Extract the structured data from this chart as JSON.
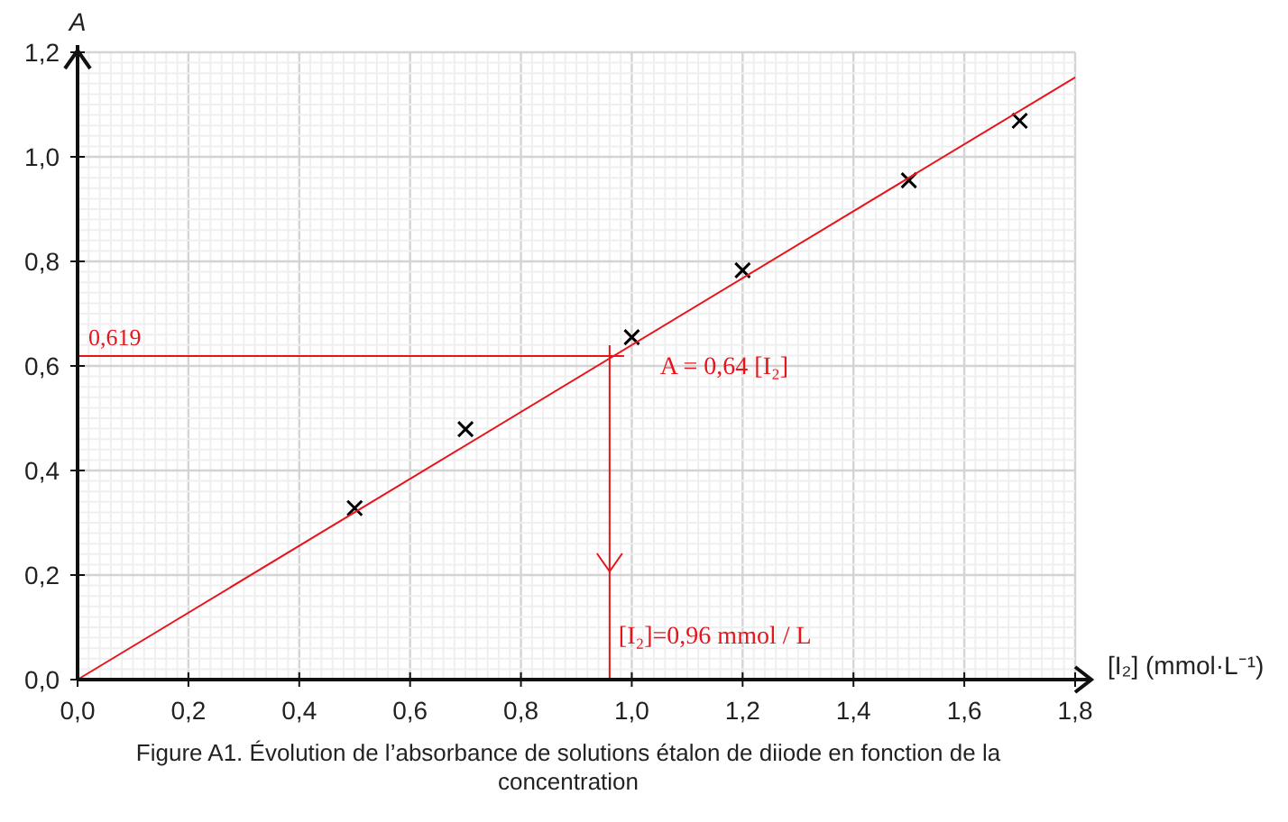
{
  "chart_data": {
    "type": "scatter",
    "xlabel": "[I₂] (mmol·L⁻¹)",
    "ylabel": "A",
    "xlim": [
      0,
      1.8
    ],
    "ylim": [
      0,
      1.2
    ],
    "xticks": [
      {
        "value": 0,
        "label": "0,0"
      },
      {
        "value": 0.2,
        "label": "0,2"
      },
      {
        "value": 0.4,
        "label": "0,4"
      },
      {
        "value": 0.6,
        "label": "0,6"
      },
      {
        "value": 0.8,
        "label": "0,8"
      },
      {
        "value": 1,
        "label": "1,0"
      },
      {
        "value": 1.2,
        "label": "1,2"
      },
      {
        "value": 1.4,
        "label": "1,4"
      },
      {
        "value": 1.6,
        "label": "1,6"
      },
      {
        "value": 1.8,
        "label": "1,8"
      }
    ],
    "yticks": [
      {
        "value": 0,
        "label": "0,0"
      },
      {
        "value": 0.2,
        "label": "0,2"
      },
      {
        "value": 0.4,
        "label": "0,4"
      },
      {
        "value": 0.6,
        "label": "0,6"
      },
      {
        "value": 0.8,
        "label": "0,8"
      },
      {
        "value": 1,
        "label": "1,0"
      },
      {
        "value": 1.2,
        "label": "1,2"
      }
    ],
    "grid": true,
    "series": [
      {
        "marker": "cross",
        "color": "#000000",
        "x": [
          0.5,
          0.7,
          1.0,
          1.2,
          1.5,
          1.7
        ],
        "values": [
          0.328,
          0.479,
          0.655,
          0.783,
          0.955,
          1.069
        ]
      },
      {
        "type": "line",
        "color": "#e8141c",
        "x": [
          0,
          1.8
        ],
        "values": [
          0,
          1.152
        ],
        "line_style": "solid",
        "marker": "none"
      }
    ],
    "ref_lines": [
      {
        "axis": "y",
        "value": 0.619,
        "label": "0,619",
        "color": "#e8141c"
      },
      {
        "axis": "x",
        "value": 0.96,
        "label": "[I₂]=0,96 mmol / L",
        "color": "#e8141c"
      }
    ],
    "annotations": [
      "A = 0,64 [I₂]",
      "Figure A1. Évolution de l’absorbance de solutions étalon de diiode en fonction de la concentration"
    ]
  }
}
